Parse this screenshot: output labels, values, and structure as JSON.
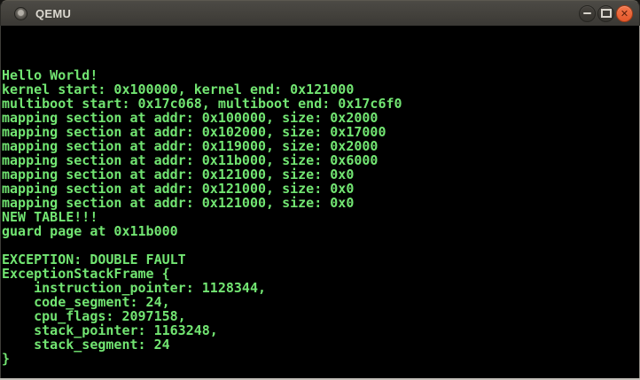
{
  "window": {
    "title": "QEMU",
    "titlebar_colors": {
      "top": "#4c4a45",
      "bottom": "#3a3834"
    },
    "controls": {
      "minimize": {
        "label": "minimize"
      },
      "maximize": {
        "label": "maximize"
      },
      "close": {
        "label": "close",
        "glyph": "✕",
        "color": "#e8542a"
      }
    }
  },
  "console": {
    "fg": "#72e572",
    "bg": "#000000",
    "lines": [
      "Hello World!",
      "kernel start: 0x100000, kernel end: 0x121000",
      "multiboot start: 0x17c068, multiboot end: 0x17c6f0",
      "mapping section at addr: 0x100000, size: 0x2000",
      "mapping section at addr: 0x102000, size: 0x17000",
      "mapping section at addr: 0x119000, size: 0x2000",
      "mapping section at addr: 0x11b000, size: 0x6000",
      "mapping section at addr: 0x121000, size: 0x0",
      "mapping section at addr: 0x121000, size: 0x0",
      "mapping section at addr: 0x121000, size: 0x0",
      "NEW TABLE!!!",
      "guard page at 0x11b000",
      "",
      "EXCEPTION: DOUBLE FAULT",
      "ExceptionStackFrame {",
      "    instruction_pointer: 1128344,",
      "    code_segment: 24,",
      "    cpu_flags: 2097158,",
      "    stack_pointer: 1163248,",
      "    stack_segment: 24",
      "}"
    ]
  }
}
